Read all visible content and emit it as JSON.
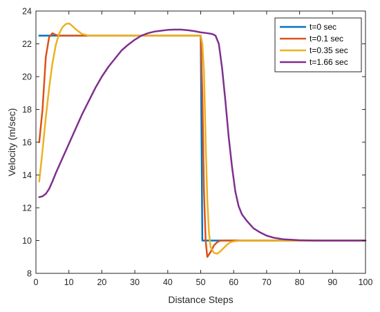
{
  "chart_data": {
    "type": "line",
    "title": "",
    "xlabel": "Distance Steps",
    "ylabel": "Velocity (m/sec)",
    "xlim": [
      0,
      100
    ],
    "ylim": [
      8,
      24
    ],
    "xticks": [
      "0",
      "10",
      "20",
      "30",
      "40",
      "50",
      "60",
      "70",
      "80",
      "90",
      "100"
    ],
    "yticks": [
      "8",
      "10",
      "12",
      "14",
      "16",
      "18",
      "20",
      "22",
      "24"
    ],
    "grid": false,
    "legend_position": "top-right",
    "series": [
      {
        "name": "t=0 sec",
        "color": "#0072BD",
        "points": [
          [
            1,
            22.5
          ],
          [
            10,
            22.5
          ],
          [
            20,
            22.5
          ],
          [
            30,
            22.5
          ],
          [
            40,
            22.5
          ],
          [
            50,
            22.5
          ],
          [
            50.5,
            10
          ],
          [
            60,
            10
          ],
          [
            70,
            10
          ],
          [
            80,
            10
          ],
          [
            90,
            10
          ],
          [
            100,
            10
          ]
        ]
      },
      {
        "name": "t=0.1 sec",
        "color": "#D95319",
        "points": [
          [
            1,
            16
          ],
          [
            2,
            18
          ],
          [
            3,
            21.2
          ],
          [
            4,
            22.4
          ],
          [
            5,
            22.65
          ],
          [
            6,
            22.55
          ],
          [
            7,
            22.5
          ],
          [
            10,
            22.5
          ],
          [
            20,
            22.5
          ],
          [
            30,
            22.5
          ],
          [
            40,
            22.5
          ],
          [
            50,
            22.5
          ],
          [
            50.5,
            19
          ],
          [
            51,
            13
          ],
          [
            51.5,
            10
          ],
          [
            52,
            9
          ],
          [
            53,
            9.3
          ],
          [
            54,
            9.7
          ],
          [
            55,
            9.9
          ],
          [
            56,
            10
          ],
          [
            60,
            10
          ],
          [
            70,
            10
          ],
          [
            80,
            10
          ],
          [
            90,
            10
          ],
          [
            100,
            10
          ]
        ]
      },
      {
        "name": "t=0.35 sec",
        "color": "#EDB120",
        "points": [
          [
            1,
            13.6
          ],
          [
            2,
            15.5
          ],
          [
            3,
            17.5
          ],
          [
            4,
            19.3
          ],
          [
            5,
            20.8
          ],
          [
            6,
            21.9
          ],
          [
            7,
            22.6
          ],
          [
            8,
            23
          ],
          [
            9,
            23.2
          ],
          [
            10,
            23.25
          ],
          [
            11,
            23.1
          ],
          [
            12,
            22.9
          ],
          [
            13,
            22.75
          ],
          [
            14,
            22.6
          ],
          [
            15,
            22.55
          ],
          [
            16,
            22.5
          ],
          [
            20,
            22.5
          ],
          [
            30,
            22.5
          ],
          [
            40,
            22.5
          ],
          [
            49,
            22.5
          ],
          [
            50,
            22.5
          ],
          [
            50.5,
            22
          ],
          [
            51,
            20.3
          ],
          [
            51.5,
            16
          ],
          [
            52,
            12.5
          ],
          [
            52.5,
            10.5
          ],
          [
            53,
            9.6
          ],
          [
            54,
            9.25
          ],
          [
            55,
            9.2
          ],
          [
            56,
            9.35
          ],
          [
            57,
            9.55
          ],
          [
            58,
            9.75
          ],
          [
            59,
            9.9
          ],
          [
            60,
            9.95
          ],
          [
            62,
            10
          ],
          [
            70,
            10
          ],
          [
            80,
            10
          ],
          [
            90,
            10
          ],
          [
            100,
            10
          ]
        ]
      },
      {
        "name": "t=1.66 sec",
        "color": "#7E2F8E",
        "points": [
          [
            1,
            12.65
          ],
          [
            2,
            12.7
          ],
          [
            3,
            12.85
          ],
          [
            4,
            13.15
          ],
          [
            5,
            13.6
          ],
          [
            6,
            14.1
          ],
          [
            8,
            15
          ],
          [
            10,
            15.9
          ],
          [
            12,
            16.8
          ],
          [
            14,
            17.7
          ],
          [
            16,
            18.5
          ],
          [
            18,
            19.3
          ],
          [
            20,
            20
          ],
          [
            22,
            20.6
          ],
          [
            24,
            21.1
          ],
          [
            26,
            21.6
          ],
          [
            28,
            21.95
          ],
          [
            30,
            22.25
          ],
          [
            32,
            22.5
          ],
          [
            34,
            22.65
          ],
          [
            36,
            22.75
          ],
          [
            38,
            22.8
          ],
          [
            40,
            22.85
          ],
          [
            42,
            22.87
          ],
          [
            44,
            22.87
          ],
          [
            46,
            22.83
          ],
          [
            48,
            22.78
          ],
          [
            50,
            22.7
          ],
          [
            52,
            22.65
          ],
          [
            53.5,
            22.6
          ],
          [
            54.5,
            22.5
          ],
          [
            55.5,
            22
          ],
          [
            56.5,
            20.5
          ],
          [
            57.5,
            18.5
          ],
          [
            58.5,
            16.3
          ],
          [
            59.5,
            14.5
          ],
          [
            60.5,
            13
          ],
          [
            61.5,
            12.1
          ],
          [
            62.5,
            11.6
          ],
          [
            64,
            11.2
          ],
          [
            66,
            10.75
          ],
          [
            68,
            10.5
          ],
          [
            70,
            10.3
          ],
          [
            72,
            10.18
          ],
          [
            75,
            10.08
          ],
          [
            80,
            10.02
          ],
          [
            85,
            10
          ],
          [
            90,
            10
          ],
          [
            95,
            10
          ],
          [
            100,
            10
          ]
        ]
      }
    ]
  }
}
